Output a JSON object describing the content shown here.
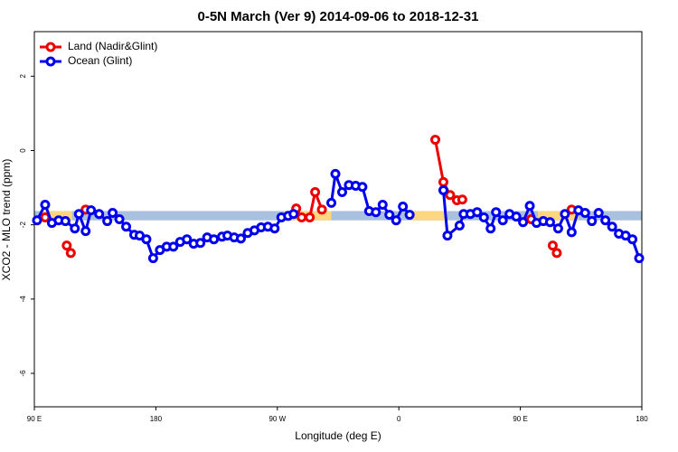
{
  "chart_data": {
    "type": "line",
    "title": "0-5N March (Ver 9)   2014-09-06 to 2018-12-31",
    "x_label": "Longitude (deg E)",
    "y_label": "XCO2 - MLO trend (ppm)",
    "xlim": [
      90,
      540
    ],
    "xticks": [
      {
        "value": 90,
        "label": "90 E"
      },
      {
        "value": 180,
        "label": "180"
      },
      {
        "value": 270,
        "label": "90 W"
      },
      {
        "value": 360,
        "label": "0"
      },
      {
        "value": 450,
        "label": "90 E"
      },
      {
        "value": 540,
        "label": "180"
      }
    ],
    "ylim": [
      -6.9,
      3.2
    ],
    "yticks": [
      -6,
      -4,
      -2,
      0,
      2
    ],
    "legend": "top-left",
    "band": {
      "ylim": [
        -1.88,
        -1.63
      ],
      "color": "#a9c0de",
      "land_color": "#fcd77f",
      "land_spans": [
        [
          95,
          118
        ],
        [
          275,
          310
        ],
        [
          369,
          396
        ],
        [
          463,
          493
        ]
      ]
    },
    "series": [
      {
        "name": "Land (Nadir&Glint)",
        "color": "#ee0000",
        "x": [
          98,
          null,
          114,
          117,
          null,
          128,
          null,
          284,
          288,
          294,
          298,
          303,
          null,
          387,
          393,
          398,
          403,
          407,
          null,
          458,
          null,
          474,
          477,
          null,
          488
        ],
        "values": [
          -1.8,
          null,
          -2.56,
          -2.76,
          null,
          -1.59,
          null,
          -1.56,
          -1.8,
          -1.8,
          -1.12,
          -1.59,
          null,
          0.29,
          -0.85,
          -1.2,
          -1.34,
          -1.32,
          null,
          -1.85,
          null,
          -2.56,
          -2.76,
          null,
          -1.59
        ]
      },
      {
        "name": "Ocean (Glint)",
        "color": "#0000ee",
        "x": [
          92,
          98,
          103,
          108,
          113,
          120,
          123,
          128,
          132,
          138,
          144,
          148,
          153,
          158,
          164,
          168,
          173,
          178,
          183,
          188,
          193,
          198,
          203,
          208,
          213,
          218,
          223,
          229,
          233,
          238,
          243,
          248,
          253,
          258,
          263,
          268,
          273,
          278,
          282,
          null,
          310,
          313,
          318,
          323,
          328,
          333,
          338,
          343,
          348,
          353,
          358,
          363,
          368,
          null,
          393,
          396,
          405,
          408,
          413,
          418,
          423,
          428,
          432,
          437,
          442,
          447,
          452,
          457,
          462,
          467,
          472,
          478,
          483,
          488,
          493,
          498,
          503,
          508,
          513,
          518,
          523,
          528,
          533,
          538
        ],
        "values": [
          -1.88,
          -1.46,
          -1.95,
          -1.88,
          -1.9,
          -2.1,
          -1.71,
          -2.17,
          -1.61,
          -1.71,
          -1.9,
          -1.68,
          -1.85,
          -2.05,
          -2.27,
          -2.29,
          -2.39,
          -2.9,
          -2.68,
          -2.59,
          -2.59,
          -2.46,
          -2.39,
          -2.51,
          -2.49,
          -2.34,
          -2.39,
          -2.32,
          -2.29,
          -2.34,
          -2.37,
          -2.22,
          -2.15,
          -2.07,
          -2.05,
          -2.1,
          -1.8,
          -1.76,
          -1.71,
          null,
          -1.41,
          -0.63,
          -1.12,
          -0.93,
          -0.95,
          -0.98,
          -1.63,
          -1.66,
          -1.46,
          -1.73,
          -1.88,
          -1.51,
          -1.73,
          null,
          -1.07,
          -2.29,
          -2.02,
          -1.71,
          -1.71,
          -1.66,
          -1.8,
          -2.1,
          -1.66,
          -1.88,
          -1.71,
          -1.78,
          -1.93,
          -1.49,
          -1.95,
          -1.9,
          -1.93,
          -2.1,
          -1.71,
          -2.2,
          -1.61,
          -1.68,
          -1.9,
          -1.68,
          -1.88,
          -2.05,
          -2.24,
          -2.29,
          -2.39,
          -2.9
        ]
      }
    ]
  }
}
